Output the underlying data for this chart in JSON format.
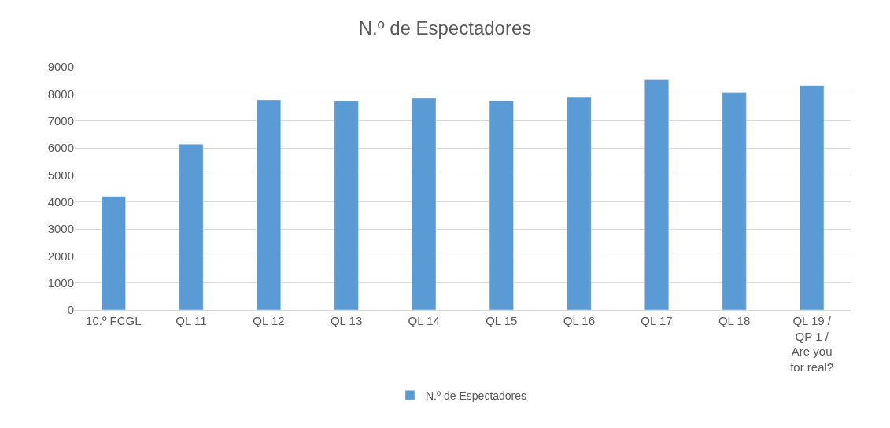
{
  "chart_data": {
    "type": "bar",
    "title": "N.º de Espectadores",
    "categories": [
      "10.º FCGL",
      "QL 11",
      "QL 12",
      "QL 13",
      "QL 14",
      "QL 15",
      "QL 16",
      "QL 17",
      "QL 18",
      "QL 19 / QP 1 / Are you for real?"
    ],
    "series": [
      {
        "name": "N.º de Espectadores",
        "color": "#5b9bd5",
        "values": [
          4200,
          6140,
          7780,
          7730,
          7840,
          7740,
          7890,
          8520,
          8050,
          8310
        ]
      }
    ],
    "ylim": [
      0,
      9000
    ],
    "yticks": [
      0,
      1000,
      2000,
      3000,
      4000,
      5000,
      6000,
      7000,
      8000,
      9000
    ],
    "grid": "y",
    "legend": "bottom"
  }
}
